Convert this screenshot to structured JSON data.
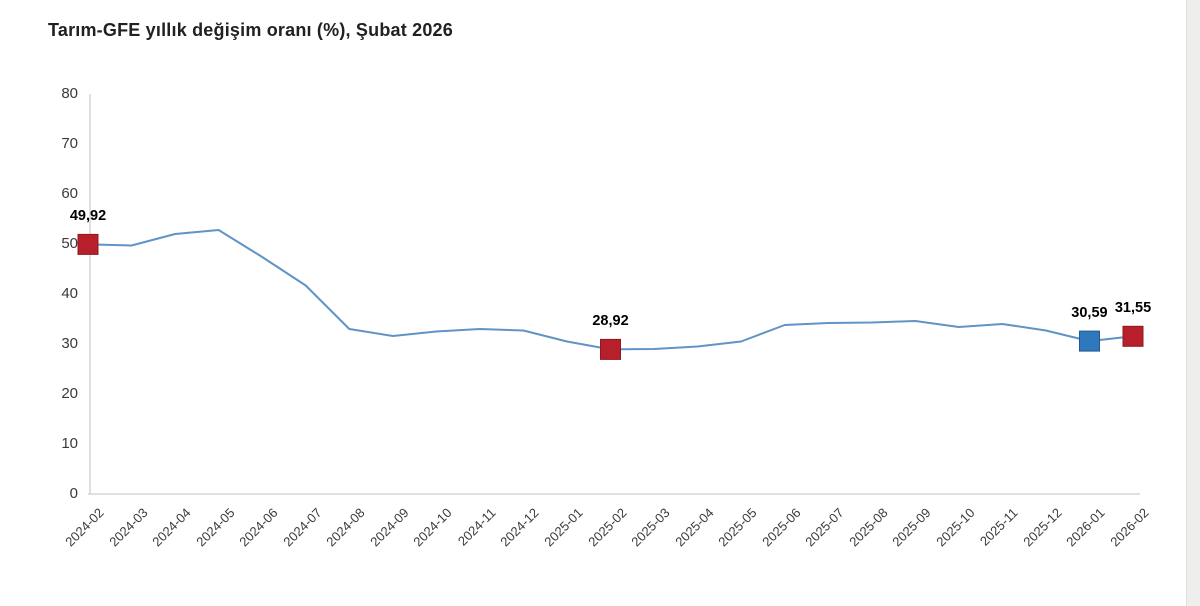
{
  "title": "Tarım-GFE yıllık değişim oranı (%), Şubat 2026",
  "chart_data": {
    "type": "line",
    "x": [
      "2024-02",
      "2024-03",
      "2024-04",
      "2024-05",
      "2024-06",
      "2024-07",
      "2024-08",
      "2024-09",
      "2024-10",
      "2024-11",
      "2024-12",
      "2025-01",
      "2025-02",
      "2025-03",
      "2025-04",
      "2025-05",
      "2025-06",
      "2025-07",
      "2025-08",
      "2025-09",
      "2025-10",
      "2025-11",
      "2025-12",
      "2026-01",
      "2026-02"
    ],
    "series": [
      {
        "name": "Tarım-GFE yıllık değişim oranı (%)",
        "values": [
          49.92,
          49.7,
          52.0,
          52.8,
          47.4,
          41.7,
          33.0,
          31.6,
          32.5,
          33.0,
          32.7,
          30.5,
          28.92,
          29.0,
          29.5,
          30.5,
          33.8,
          34.2,
          34.3,
          34.6,
          33.4,
          34.0,
          32.7,
          30.59,
          31.55
        ]
      }
    ],
    "ylim": [
      0,
      80
    ],
    "yticks": [
      0,
      10,
      20,
      30,
      40,
      50,
      60,
      70,
      80
    ],
    "grid": false,
    "legend": false,
    "line_color": "#5f94c4",
    "axis_color": "#d6d6d6",
    "annotations": [
      {
        "x": "2024-02",
        "label": "49,92",
        "marker": "square",
        "fill": "#b71f2b",
        "border": "#8f1822"
      },
      {
        "x": "2025-02",
        "label": "28,92",
        "marker": "square",
        "fill": "#b71f2b",
        "border": "#8f1822"
      },
      {
        "x": "2026-01",
        "label": "30,59",
        "marker": "square",
        "fill": "#3078bd",
        "border": "#23598d"
      },
      {
        "x": "2026-02",
        "label": "31,55",
        "marker": "square",
        "fill": "#b71f2b",
        "border": "#8f1822"
      }
    ]
  }
}
